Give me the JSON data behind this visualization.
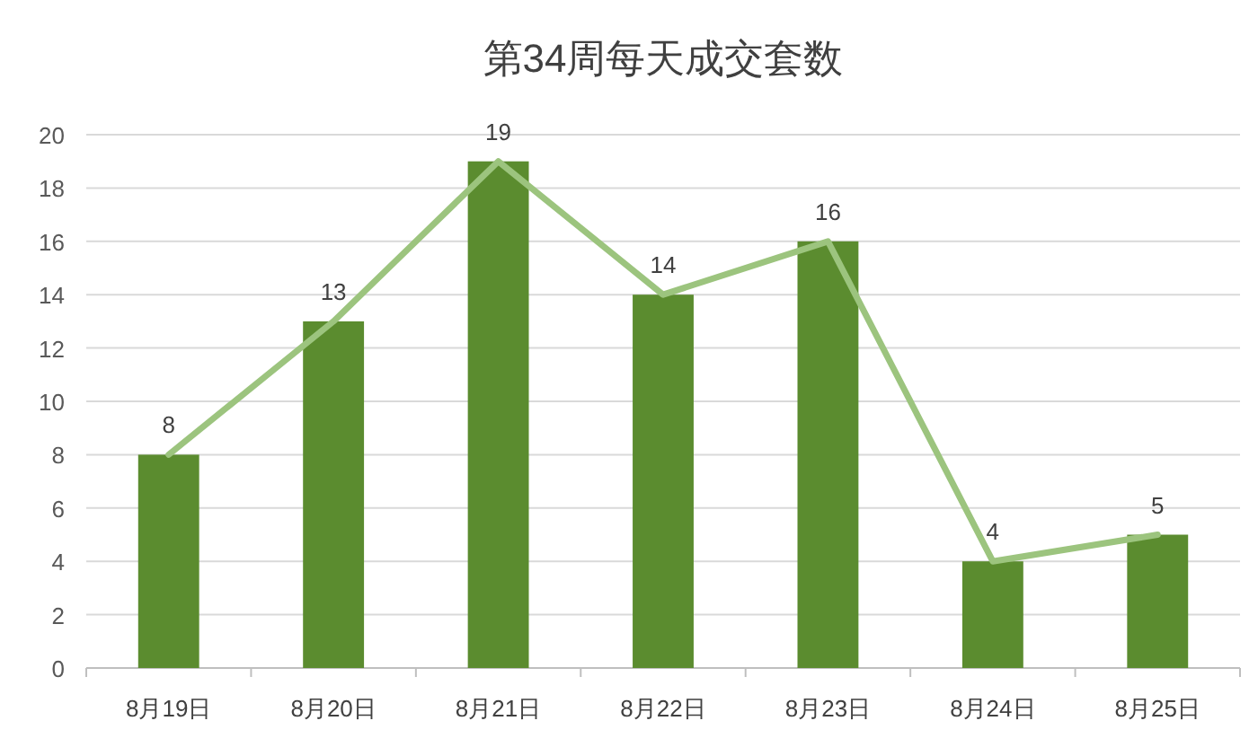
{
  "chart_data": {
    "type": "bar",
    "title": "第34周每天成交套数",
    "categories": [
      "8月19日",
      "8月20日",
      "8月21日",
      "8月22日",
      "8月23日",
      "8月24日",
      "8月25日"
    ],
    "series": [
      {
        "color": "#5b8c2f",
        "values": [
          8,
          13,
          19,
          14,
          16,
          4,
          5
        ],
        "value_labels": [
          "8",
          "13",
          "19",
          "14",
          "16",
          "4",
          "5"
        ]
      },
      {
        "type": "line",
        "color": "#9cc47e",
        "values": [
          8,
          13,
          19,
          14,
          16,
          4,
          5
        ]
      }
    ],
    "ylim": [
      0,
      20
    ],
    "yticks": [
      0,
      2,
      4,
      6,
      8,
      10,
      12,
      14,
      16,
      18,
      20
    ],
    "grid": "y"
  }
}
